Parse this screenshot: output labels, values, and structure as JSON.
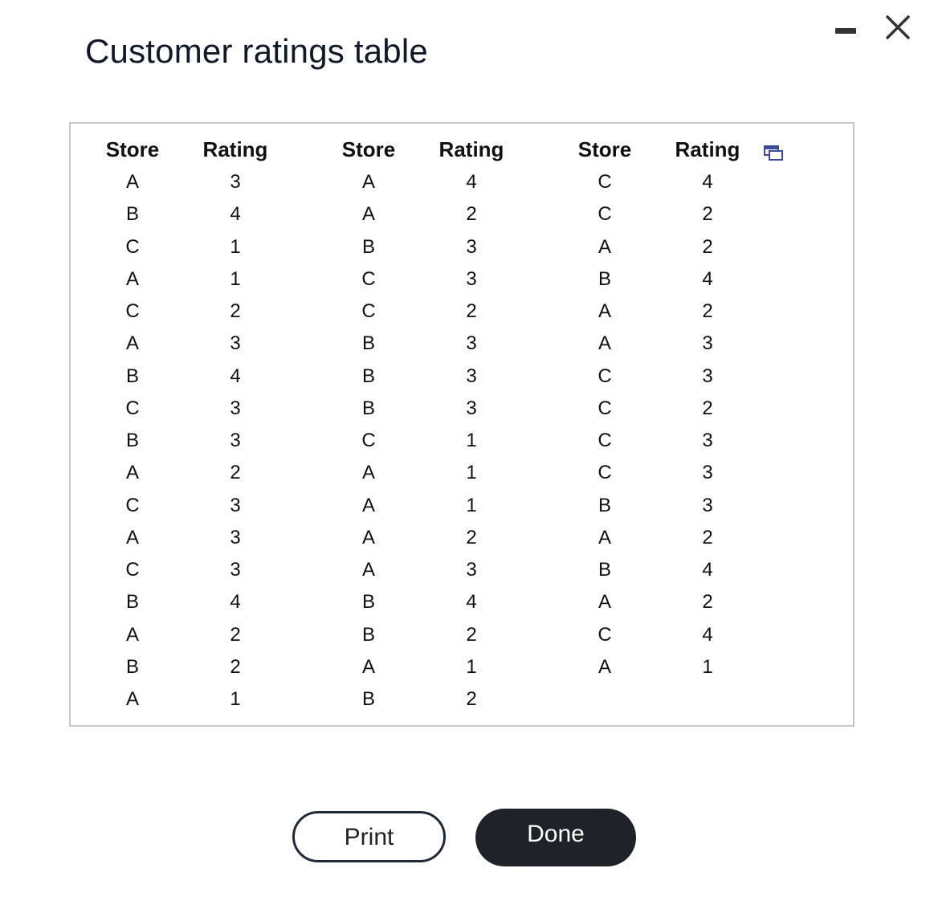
{
  "window": {
    "title": "Customer ratings table"
  },
  "table": {
    "groups": [
      {
        "store_header": "Store",
        "rating_header": "Rating",
        "rows": [
          {
            "store": "A",
            "rating": "3"
          },
          {
            "store": "B",
            "rating": "4"
          },
          {
            "store": "C",
            "rating": "1"
          },
          {
            "store": "A",
            "rating": "1"
          },
          {
            "store": "C",
            "rating": "2"
          },
          {
            "store": "A",
            "rating": "3"
          },
          {
            "store": "B",
            "rating": "4"
          },
          {
            "store": "C",
            "rating": "3"
          },
          {
            "store": "B",
            "rating": "3"
          },
          {
            "store": "A",
            "rating": "2"
          },
          {
            "store": "C",
            "rating": "3"
          },
          {
            "store": "A",
            "rating": "3"
          },
          {
            "store": "C",
            "rating": "3"
          },
          {
            "store": "B",
            "rating": "4"
          },
          {
            "store": "A",
            "rating": "2"
          },
          {
            "store": "B",
            "rating": "2"
          },
          {
            "store": "A",
            "rating": "1"
          }
        ]
      },
      {
        "store_header": "Store",
        "rating_header": "Rating",
        "rows": [
          {
            "store": "A",
            "rating": "4"
          },
          {
            "store": "A",
            "rating": "2"
          },
          {
            "store": "B",
            "rating": "3"
          },
          {
            "store": "C",
            "rating": "3"
          },
          {
            "store": "C",
            "rating": "2"
          },
          {
            "store": "B",
            "rating": "3"
          },
          {
            "store": "B",
            "rating": "3"
          },
          {
            "store": "B",
            "rating": "3"
          },
          {
            "store": "C",
            "rating": "1"
          },
          {
            "store": "A",
            "rating": "1"
          },
          {
            "store": "A",
            "rating": "1"
          },
          {
            "store": "A",
            "rating": "2"
          },
          {
            "store": "A",
            "rating": "3"
          },
          {
            "store": "B",
            "rating": "4"
          },
          {
            "store": "B",
            "rating": "2"
          },
          {
            "store": "A",
            "rating": "1"
          },
          {
            "store": "B",
            "rating": "2"
          }
        ]
      },
      {
        "store_header": "Store",
        "rating_header": "Rating",
        "rows": [
          {
            "store": "C",
            "rating": "4"
          },
          {
            "store": "C",
            "rating": "2"
          },
          {
            "store": "A",
            "rating": "2"
          },
          {
            "store": "B",
            "rating": "4"
          },
          {
            "store": "A",
            "rating": "2"
          },
          {
            "store": "A",
            "rating": "3"
          },
          {
            "store": "C",
            "rating": "3"
          },
          {
            "store": "C",
            "rating": "2"
          },
          {
            "store": "C",
            "rating": "3"
          },
          {
            "store": "C",
            "rating": "3"
          },
          {
            "store": "B",
            "rating": "3"
          },
          {
            "store": "A",
            "rating": "2"
          },
          {
            "store": "B",
            "rating": "4"
          },
          {
            "store": "A",
            "rating": "2"
          },
          {
            "store": "C",
            "rating": "4"
          },
          {
            "store": "A",
            "rating": "1"
          }
        ]
      }
    ]
  },
  "buttons": {
    "print_label": "Print",
    "done_label": "Done"
  },
  "icons": {
    "minimize": "minimize-icon",
    "close": "close-icon",
    "popout": "popout-icon"
  },
  "colors": {
    "done_bg": "#1f2229",
    "border": "#c8c8c8",
    "popout_accent": "#3b4a9c"
  }
}
